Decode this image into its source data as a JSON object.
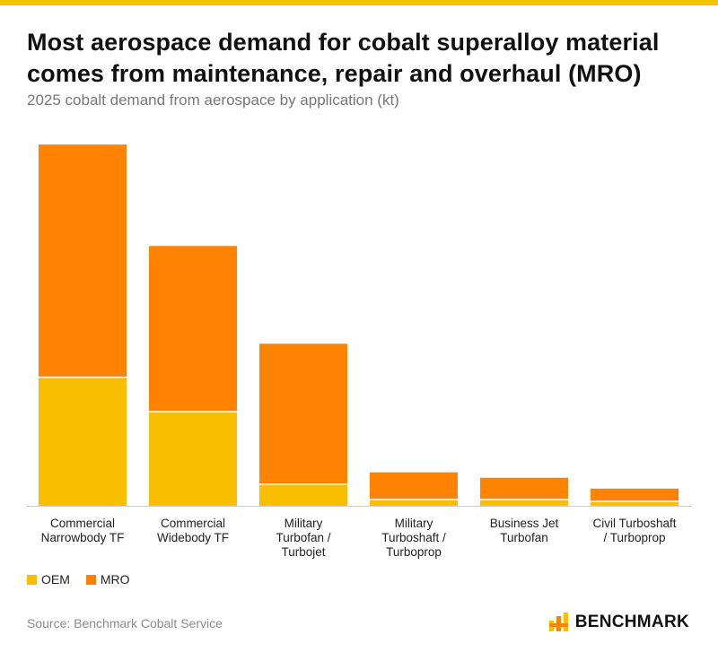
{
  "header": {
    "title_line1": "Most aerospace demand for cobalt superalloy material",
    "title_line2": "comes from maintenance, repair and overhaul (MRO)",
    "subtitle": "2025 cobalt demand from aerospace by application (kt)"
  },
  "legend": [
    {
      "name": "OEM",
      "color": "#F9BE00"
    },
    {
      "name": "MRO",
      "color": "#FF8200"
    }
  ],
  "footer": {
    "source": "Source: Benchmark Cobalt Service",
    "brand": "BENCHMARK"
  },
  "colors": {
    "accent_bar": "#F9C300",
    "oem": "#F9BE00",
    "mro": "#FF8200"
  },
  "chart_data": {
    "type": "bar",
    "stacked": true,
    "title": "Most aerospace demand for cobalt superalloy material comes from maintenance, repair and overhaul (MRO)",
    "subtitle": "2025 cobalt demand from aerospace by application (kt)",
    "categories": [
      [
        "Commercial",
        "Narrowbody TF"
      ],
      [
        "Commercial",
        "Widebody TF"
      ],
      [
        "Military",
        "Turbofan /",
        "Turbojet"
      ],
      [
        "Military",
        "Turboshaft /",
        "Turboprop"
      ],
      [
        "Business Jet",
        "Turbofan"
      ],
      [
        "Civil Turboshaft",
        "/ Turboprop"
      ]
    ],
    "series": [
      {
        "name": "OEM",
        "values": [
          1.42,
          1.04,
          0.24,
          0.07,
          0.07,
          0.05
        ]
      },
      {
        "name": "MRO",
        "values": [
          2.57,
          1.83,
          1.55,
          0.3,
          0.24,
          0.14
        ]
      }
    ],
    "ylim": [
      0,
      4.2
    ],
    "grid": false,
    "y_axis_visible": false,
    "legend_position": "bottom-left"
  }
}
